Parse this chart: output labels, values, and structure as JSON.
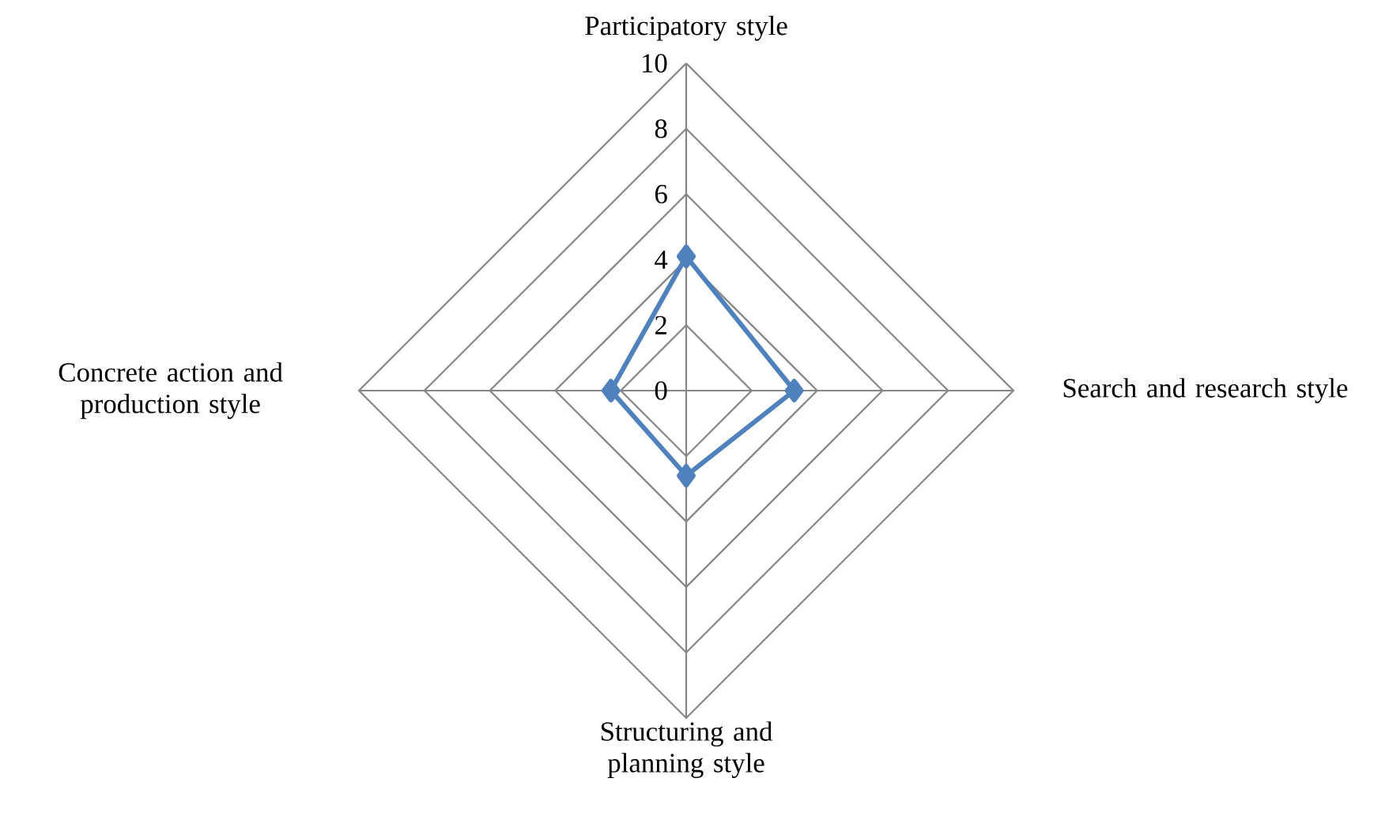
{
  "chart_data": {
    "type": "radar",
    "categories": [
      "Participatory style",
      "Search and research style",
      "Structuring and planning style",
      "Concrete action and production style"
    ],
    "series": [
      {
        "color": "#4f81bd",
        "values": [
          4.1,
          3.3,
          2.6,
          2.3
        ]
      }
    ],
    "ylim": [
      0,
      10
    ],
    "yticks": [
      0,
      2,
      4,
      6,
      8,
      10
    ],
    "grid": true,
    "marker": "diamond",
    "line_style": "solid"
  }
}
